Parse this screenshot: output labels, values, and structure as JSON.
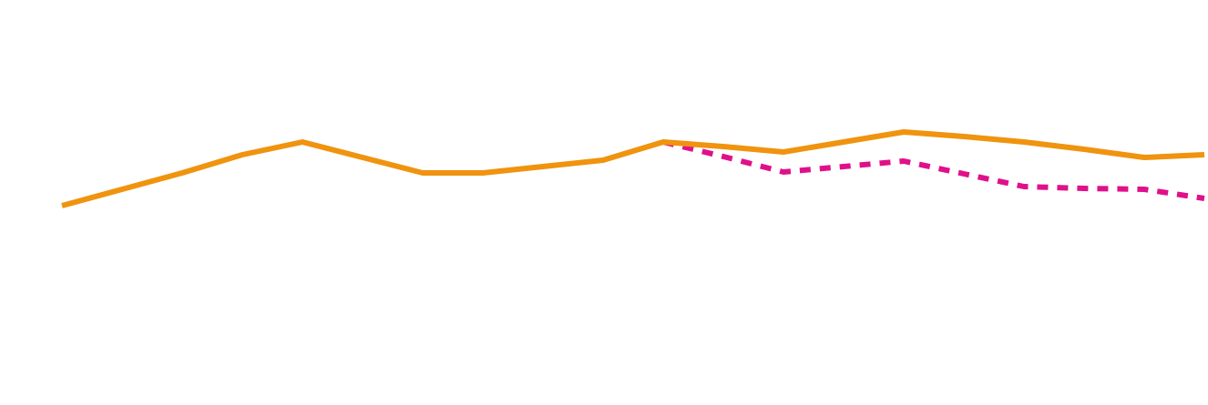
{
  "chart_data": {
    "type": "line",
    "categories": [
      null,
      null,
      null,
      null,
      null,
      null,
      null,
      null,
      null,
      null,
      null,
      null,
      null,
      null,
      null,
      null,
      null,
      null,
      null,
      null
    ],
    "series": [
      {
        "color": "#f0930e",
        "dash": false,
        "values": [
          214,
          232,
          250,
          270,
          284,
          267,
          250,
          250,
          257,
          264,
          284,
          279,
          273,
          284,
          295,
          290,
          284,
          276,
          267,
          270
        ]
      },
      {
        "color": "#e0108a",
        "dash": true,
        "values": [
          null,
          null,
          null,
          null,
          null,
          null,
          null,
          null,
          null,
          null,
          284,
          268,
          251,
          257,
          263,
          249,
          235,
          233,
          232,
          222
        ]
      }
    ],
    "ylim": [
      0,
      440
    ]
  }
}
